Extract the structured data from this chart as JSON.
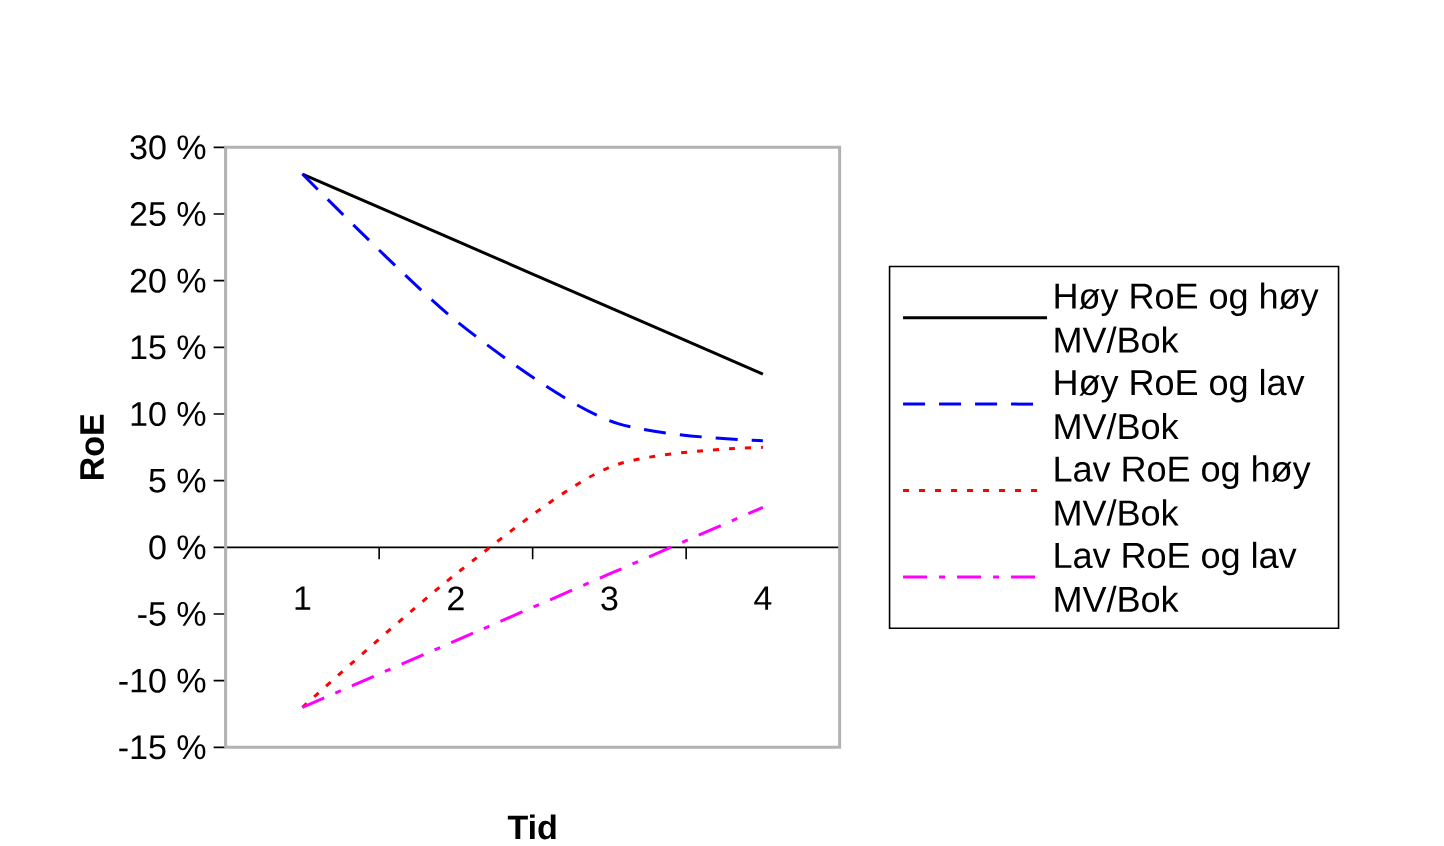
{
  "chart_data": {
    "type": "line",
    "xlabel": "Tid",
    "ylabel": "RoE",
    "categories": [
      "1",
      "2",
      "3",
      "4"
    ],
    "series": [
      {
        "name": "Høy RoE og høy MV/Bok",
        "color": "#000000",
        "line_style": "solid",
        "values": [
          28,
          23,
          18,
          13
        ]
      },
      {
        "name": "Høy RoE og lav MV/Bok",
        "color": "#0000ff",
        "line_style": "dashed",
        "values": [
          28,
          17,
          9.5,
          8
        ]
      },
      {
        "name": "Lav RoE og høy MV/Bok",
        "color": "#ff0000",
        "line_style": "dotted",
        "values": [
          -12,
          -2,
          6,
          7.5
        ]
      },
      {
        "name": "Lav RoE og lav MV/Bok",
        "color": "#ff00ff",
        "line_style": "dashdot",
        "values": [
          -12,
          -7,
          -2,
          3
        ]
      }
    ],
    "ylim": [
      -15,
      30
    ],
    "yticks": [
      {
        "value": -15,
        "label": "-15 %"
      },
      {
        "value": -10,
        "label": "-10 %"
      },
      {
        "value": -5,
        "label": "-5 %"
      },
      {
        "value": 0,
        "label": "0 %"
      },
      {
        "value": 5,
        "label": "5 %"
      },
      {
        "value": 10,
        "label": "10 %"
      },
      {
        "value": 15,
        "label": "15 %"
      },
      {
        "value": 20,
        "label": "20 %"
      },
      {
        "value": 25,
        "label": "25 %"
      },
      {
        "value": 30,
        "label": "30 %"
      }
    ],
    "grid": false,
    "legend": "right",
    "marker": "none"
  }
}
